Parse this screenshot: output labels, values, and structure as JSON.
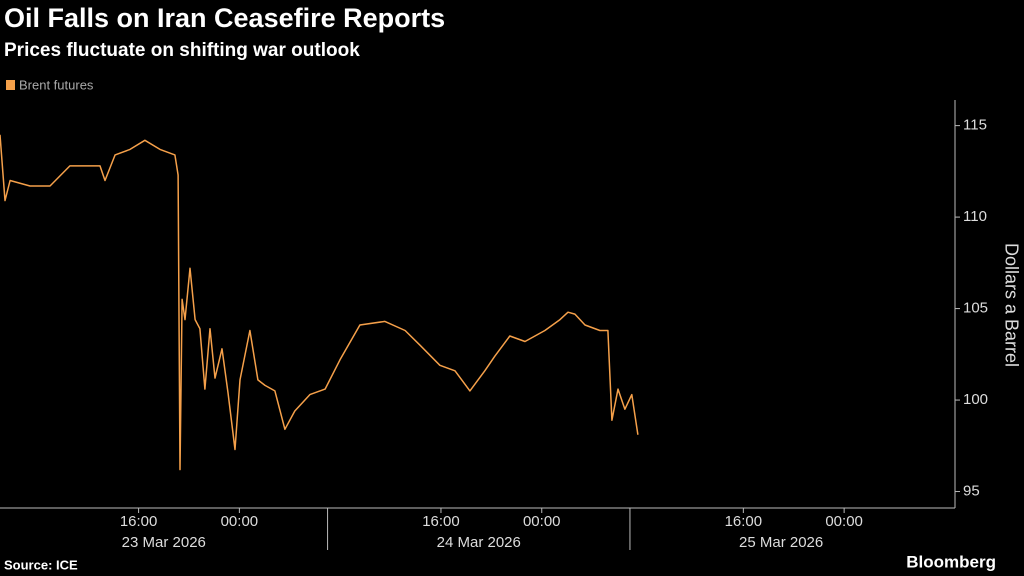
{
  "chart_data": {
    "type": "line",
    "title": "Oil Falls on Iran Ceasefire Reports",
    "subtitle": "Prices fluctuate on shifting war outlook",
    "ylabel": "Dollars a Barrel",
    "source": "Source: ICE",
    "brand": "Bloomberg",
    "grid": false,
    "legend": "top-left",
    "x": [
      "2026-03-23T05:00",
      "2026-03-23T05:24",
      "2026-03-23T05:48",
      "2026-03-23T07:23",
      "2026-03-23T08:58",
      "2026-03-23T10:33",
      "2026-03-23T12:56",
      "2026-03-23T13:20",
      "2026-03-23T14:08",
      "2026-03-23T15:19",
      "2026-03-23T16:30",
      "2026-03-23T17:42",
      "2026-03-23T18:53",
      "2026-03-23T19:08",
      "2026-03-23T19:17",
      "2026-03-23T19:27",
      "2026-03-23T19:41",
      "2026-03-23T20:05",
      "2026-03-23T20:29",
      "2026-03-23T20:52",
      "2026-03-23T21:16",
      "2026-03-23T21:40",
      "2026-03-23T22:04",
      "2026-03-23T22:37",
      "2026-03-23T23:06",
      "2026-03-23T23:39",
      "2026-03-24T00:03",
      "2026-03-24T00:50",
      "2026-03-24T01:28",
      "2026-03-24T02:02",
      "2026-03-24T02:49",
      "2026-03-24T03:37",
      "2026-03-24T04:24",
      "2026-03-24T05:36",
      "2026-03-24T06:48",
      "2026-03-24T07:59",
      "2026-03-24T09:34",
      "2026-03-24T11:33",
      "2026-03-24T13:09",
      "2026-03-24T14:20",
      "2026-03-24T15:55",
      "2026-03-24T17:07",
      "2026-03-24T18:18",
      "2026-03-24T19:29",
      "2026-03-24T20:17",
      "2026-03-24T21:28",
      "2026-03-24T22:40",
      "2026-03-25T00:15",
      "2026-03-25T01:27",
      "2026-03-25T02:05",
      "2026-03-25T02:38",
      "2026-03-25T03:26",
      "2026-03-25T04:37",
      "2026-03-25T05:15",
      "2026-03-25T05:34",
      "2026-03-25T06:03",
      "2026-03-25T06:36",
      "2026-03-25T07:09",
      "2026-03-25T07:38"
    ],
    "series": [
      {
        "name": "Brent futures",
        "color": "#f5a04a",
        "values": [
          114.5,
          110.9,
          112.0,
          111.7,
          111.7,
          112.8,
          112.8,
          112.0,
          113.4,
          113.7,
          114.2,
          113.7,
          113.4,
          112.3,
          96.2,
          105.5,
          104.4,
          107.2,
          104.4,
          103.9,
          100.6,
          103.9,
          101.2,
          102.8,
          100.4,
          97.3,
          101.1,
          103.8,
          101.1,
          100.8,
          100.5,
          98.4,
          99.4,
          100.3,
          100.6,
          102.2,
          104.1,
          104.3,
          103.8,
          103.0,
          101.9,
          101.6,
          100.5,
          101.6,
          102.4,
          103.5,
          103.2,
          103.8,
          104.4,
          104.8,
          104.7,
          104.1,
          103.8,
          103.8,
          98.9,
          100.6,
          99.5,
          100.3,
          98.1
        ]
      }
    ],
    "xlim": [
      "2026-03-23T05:00",
      "2026-03-26T08:48"
    ],
    "xticks": [
      {
        "value": "2026-03-23T16:00",
        "label": "16:00"
      },
      {
        "value": "2026-03-24T00:00",
        "label": "00:00"
      },
      {
        "value": "2026-03-24T16:00",
        "label": "16:00"
      },
      {
        "value": "2026-03-25T00:00",
        "label": "00:00"
      },
      {
        "value": "2026-03-25T16:00",
        "label": "16:00"
      },
      {
        "value": "2026-03-26T00:00",
        "label": "00:00"
      }
    ],
    "date_ticks": [
      {
        "value": "2026-03-23T18:00",
        "label": "23 Mar 2026"
      },
      {
        "value": "2026-03-24T19:00",
        "label": "24 Mar 2026"
      },
      {
        "value": "2026-03-25T19:00",
        "label": "25 Mar 2026"
      }
    ],
    "day_dividers": [
      "2026-03-24T07:00",
      "2026-03-25T07:00"
    ],
    "ylim": [
      94.1,
      116.4
    ],
    "yticks": [
      95,
      100,
      105,
      110,
      115
    ]
  }
}
